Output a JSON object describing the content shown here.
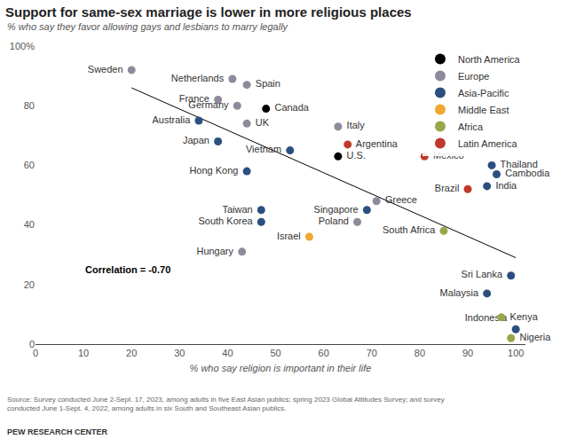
{
  "chart_data": {
    "type": "scatter",
    "title": "Support for same-sex marriage is lower in more religious places",
    "subtitle": "% who say they favor allowing gays and lesbians to marry legally",
    "x_label": "% who say religion is important in their life",
    "source": [
      "Source: Survey conducted June 2-Sept. 17, 2023, among adults in five East Asian publics; spring 2023 Global Attitudes Survey; and survey",
      "conducted June 1-Sept. 4, 2022, among adults in six South and Southeast Asian publics."
    ],
    "credit": "PEW RESEARCH CENTER",
    "annotation": "Correlation = -0.70",
    "xlim": [
      0,
      102
    ],
    "xticks": [
      0,
      10,
      20,
      30,
      40,
      50,
      60,
      70,
      80,
      90,
      100
    ],
    "ylim": [
      0,
      100
    ],
    "yticks": [
      0,
      20,
      40,
      60,
      80,
      {
        "value": 100,
        "label": "100%"
      }
    ],
    "grid": false,
    "legend": "top-right",
    "trend_line": {
      "x": [
        20,
        100
      ],
      "y": [
        86,
        29
      ],
      "color": "#000000"
    },
    "series": [
      {
        "name": "North America",
        "color": "#000000",
        "labels": [
          "Canada",
          "U.S."
        ],
        "x": [
          48,
          63
        ],
        "values": [
          79,
          63
        ]
      },
      {
        "name": "Europe",
        "color": "#8e8a9c",
        "labels": [
          "Sweden",
          "Netherlands",
          "Spain",
          "France",
          "Germany",
          "UK",
          "Italy",
          "Greece",
          "Poland",
          "Hungary"
        ],
        "x": [
          20,
          41,
          44,
          38,
          42,
          44,
          63,
          71,
          67,
          43
        ],
        "values": [
          92,
          89,
          87,
          82,
          80,
          74,
          73,
          48,
          41,
          31
        ]
      },
      {
        "name": "Asia-Pacific",
        "color": "#2b4f7e",
        "labels": [
          "Australia",
          "Japan",
          "Vietnam",
          "Thailand",
          "Cambodia",
          "Hong Kong",
          "India",
          "Taiwan",
          "Singapore",
          "South Korea",
          "Sri Lanka",
          "Malaysia",
          "Indonesia"
        ],
        "x": [
          34,
          38,
          53,
          95,
          96,
          44,
          94,
          47,
          69,
          47,
          99,
          94,
          100
        ],
        "values": [
          75,
          68,
          65,
          60,
          57,
          58,
          53,
          45,
          45,
          41,
          23,
          17,
          5
        ]
      },
      {
        "name": "Middle East",
        "color": "#f0a830",
        "labels": [
          "Israel"
        ],
        "x": [
          57
        ],
        "values": [
          36
        ]
      },
      {
        "name": "Africa",
        "color": "#9aa64a",
        "labels": [
          "South Africa",
          "Kenya",
          "Nigeria"
        ],
        "x": [
          85,
          97,
          99
        ],
        "values": [
          38,
          9,
          2
        ]
      },
      {
        "name": "Latin America",
        "color": "#c0392b",
        "labels": [
          "Argentina",
          "Mexico",
          "Brazil"
        ],
        "x": [
          65,
          81,
          90
        ],
        "values": [
          67,
          63,
          52
        ]
      }
    ]
  }
}
